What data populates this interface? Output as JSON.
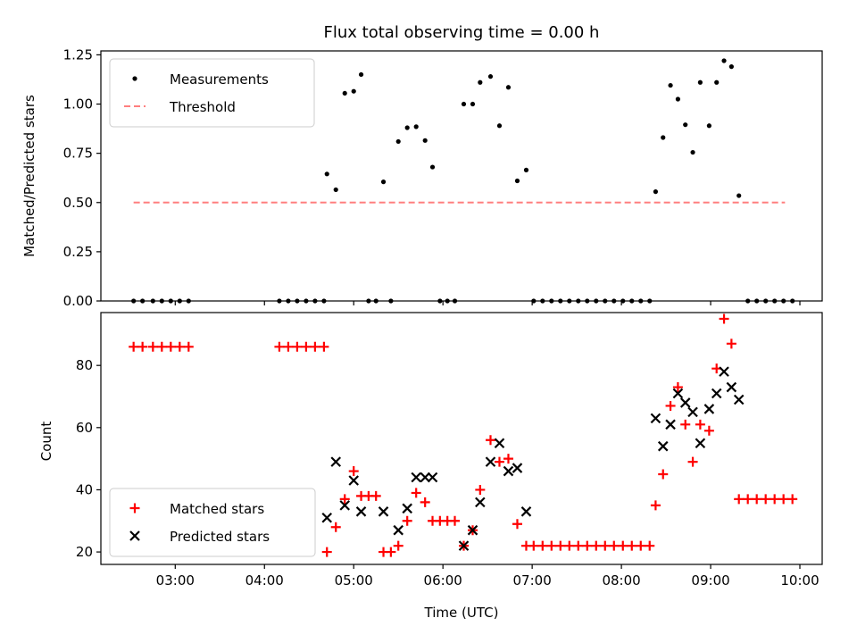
{
  "chart_data": {
    "type": "scatter",
    "title": "Flux total observing time = 0.00 h",
    "xlabel": "Time (UTC)",
    "x_unit": "hours UTC",
    "xlim": [
      "02:10",
      "10:15"
    ],
    "x_tick_labels": [
      "03:00",
      "04:00",
      "05:00",
      "06:00",
      "07:00",
      "08:00",
      "09:00",
      "10:00"
    ],
    "panels": [
      {
        "ylabel": "Matched/Predicted stars",
        "ylim": [
          0,
          1.27
        ],
        "y_tick_labels": [
          "0.00",
          "0.25",
          "0.50",
          "0.75",
          "1.00",
          "1.25"
        ],
        "legend_position": "upper-left",
        "series": [
          {
            "name": "Measurements",
            "marker": "dot",
            "color": "#000000",
            "points": [
              [
                "02:32",
                0
              ],
              [
                "02:38",
                0
              ],
              [
                "02:45",
                0
              ],
              [
                "02:51",
                0
              ],
              [
                "02:57",
                0
              ],
              [
                "03:03",
                0
              ],
              [
                "03:09",
                0
              ],
              [
                "04:10",
                0
              ],
              [
                "04:16",
                0
              ],
              [
                "04:22",
                0
              ],
              [
                "04:28",
                0
              ],
              [
                "04:34",
                0
              ],
              [
                "04:40",
                0
              ],
              [
                "04:42",
                0.645
              ],
              [
                "04:48",
                0.565
              ],
              [
                "04:54",
                1.055
              ],
              [
                "05:00",
                1.065
              ],
              [
                "05:05",
                1.15
              ],
              [
                "05:10",
                0
              ],
              [
                "05:15",
                0
              ],
              [
                "05:20",
                0.605
              ],
              [
                "05:25",
                0
              ],
              [
                "05:30",
                0.81
              ],
              [
                "05:36",
                0.88
              ],
              [
                "05:42",
                0.885
              ],
              [
                "05:48",
                0.815
              ],
              [
                "05:53",
                0.68
              ],
              [
                "05:58",
                0
              ],
              [
                "06:03",
                0
              ],
              [
                "06:08",
                0
              ],
              [
                "06:14",
                1.0
              ],
              [
                "06:20",
                1.0
              ],
              [
                "06:25",
                1.11
              ],
              [
                "06:32",
                1.14
              ],
              [
                "06:38",
                0.89
              ],
              [
                "06:44",
                1.085
              ],
              [
                "06:50",
                0.61
              ],
              [
                "06:56",
                0.665
              ],
              [
                "07:01",
                0
              ],
              [
                "07:07",
                0
              ],
              [
                "07:13",
                0
              ],
              [
                "07:19",
                0
              ],
              [
                "07:25",
                0
              ],
              [
                "07:31",
                0
              ],
              [
                "07:37",
                0
              ],
              [
                "07:43",
                0
              ],
              [
                "07:49",
                0
              ],
              [
                "07:55",
                0
              ],
              [
                "08:01",
                0
              ],
              [
                "08:07",
                0
              ],
              [
                "08:13",
                0
              ],
              [
                "08:19",
                0
              ],
              [
                "08:23",
                0.555
              ],
              [
                "08:28",
                0.83
              ],
              [
                "08:33",
                1.095
              ],
              [
                "08:38",
                1.025
              ],
              [
                "08:43",
                0.895
              ],
              [
                "08:48",
                0.755
              ],
              [
                "08:53",
                1.11
              ],
              [
                "08:59",
                0.89
              ],
              [
                "09:04",
                1.11
              ],
              [
                "09:09",
                1.22
              ],
              [
                "09:14",
                1.19
              ],
              [
                "09:19",
                0.535
              ],
              [
                "09:25",
                0
              ],
              [
                "09:31",
                0
              ],
              [
                "09:37",
                0
              ],
              [
                "09:43",
                0
              ],
              [
                "09:49",
                0
              ],
              [
                "09:55",
                0
              ]
            ]
          },
          {
            "name": "Threshold",
            "marker": "dashed-line",
            "color": "#ff7f7f",
            "points": [
              [
                "02:32",
                0.5
              ],
              [
                "09:50",
                0.5
              ]
            ]
          }
        ]
      },
      {
        "ylabel": "Count",
        "ylim": [
          16,
          97
        ],
        "y_tick_labels": [
          "20",
          "40",
          "60",
          "80"
        ],
        "legend_position": "lower-left",
        "series": [
          {
            "name": "Matched stars",
            "marker": "plus",
            "color": "#ff0000",
            "points": [
              [
                "02:32",
                86
              ],
              [
                "02:38",
                86
              ],
              [
                "02:45",
                86
              ],
              [
                "02:51",
                86
              ],
              [
                "02:57",
                86
              ],
              [
                "03:03",
                86
              ],
              [
                "03:09",
                86
              ],
              [
                "04:10",
                86
              ],
              [
                "04:16",
                86
              ],
              [
                "04:22",
                86
              ],
              [
                "04:28",
                86
              ],
              [
                "04:34",
                86
              ],
              [
                "04:40",
                86
              ],
              [
                "04:42",
                20
              ],
              [
                "04:48",
                28
              ],
              [
                "04:54",
                37
              ],
              [
                "05:00",
                46
              ],
              [
                "05:05",
                38
              ],
              [
                "05:10",
                38
              ],
              [
                "05:15",
                38
              ],
              [
                "05:20",
                20
              ],
              [
                "05:25",
                20
              ],
              [
                "05:30",
                22
              ],
              [
                "05:36",
                30
              ],
              [
                "05:42",
                39
              ],
              [
                "05:48",
                36
              ],
              [
                "05:53",
                30
              ],
              [
                "05:58",
                30
              ],
              [
                "06:03",
                30
              ],
              [
                "06:08",
                30
              ],
              [
                "06:14",
                22
              ],
              [
                "06:20",
                27
              ],
              [
                "06:25",
                40
              ],
              [
                "06:32",
                56
              ],
              [
                "06:38",
                49
              ],
              [
                "06:44",
                50
              ],
              [
                "06:50",
                29
              ],
              [
                "06:56",
                22
              ],
              [
                "07:01",
                22
              ],
              [
                "07:07",
                22
              ],
              [
                "07:13",
                22
              ],
              [
                "07:19",
                22
              ],
              [
                "07:25",
                22
              ],
              [
                "07:31",
                22
              ],
              [
                "07:37",
                22
              ],
              [
                "07:43",
                22
              ],
              [
                "07:49",
                22
              ],
              [
                "07:55",
                22
              ],
              [
                "08:01",
                22
              ],
              [
                "08:07",
                22
              ],
              [
                "08:13",
                22
              ],
              [
                "08:19",
                22
              ],
              [
                "08:23",
                35
              ],
              [
                "08:28",
                45
              ],
              [
                "08:33",
                67
              ],
              [
                "08:38",
                73
              ],
              [
                "08:43",
                61
              ],
              [
                "08:48",
                49
              ],
              [
                "08:53",
                61
              ],
              [
                "08:59",
                59
              ],
              [
                "09:04",
                79
              ],
              [
                "09:09",
                95
              ],
              [
                "09:14",
                87
              ],
              [
                "09:19",
                37
              ],
              [
                "09:25",
                37
              ],
              [
                "09:31",
                37
              ],
              [
                "09:37",
                37
              ],
              [
                "09:43",
                37
              ],
              [
                "09:49",
                37
              ],
              [
                "09:55",
                37
              ]
            ]
          },
          {
            "name": "Predicted stars",
            "marker": "x",
            "color": "#000000",
            "points": [
              [
                "04:42",
                31
              ],
              [
                "04:48",
                49
              ],
              [
                "04:54",
                35
              ],
              [
                "05:00",
                43
              ],
              [
                "05:05",
                33
              ],
              [
                "05:20",
                33
              ],
              [
                "05:30",
                27
              ],
              [
                "05:36",
                34
              ],
              [
                "05:42",
                44
              ],
              [
                "05:48",
                44
              ],
              [
                "05:53",
                44
              ],
              [
                "06:14",
                22
              ],
              [
                "06:20",
                27
              ],
              [
                "06:25",
                36
              ],
              [
                "06:32",
                49
              ],
              [
                "06:38",
                55
              ],
              [
                "06:44",
                46
              ],
              [
                "06:50",
                47
              ],
              [
                "06:56",
                33
              ],
              [
                "08:23",
                63
              ],
              [
                "08:28",
                54
              ],
              [
                "08:33",
                61
              ],
              [
                "08:38",
                71
              ],
              [
                "08:43",
                68
              ],
              [
                "08:48",
                65
              ],
              [
                "08:53",
                55
              ],
              [
                "08:59",
                66
              ],
              [
                "09:04",
                71
              ],
              [
                "09:09",
                78
              ],
              [
                "09:14",
                73
              ],
              [
                "09:19",
                69
              ]
            ]
          }
        ]
      }
    ]
  }
}
